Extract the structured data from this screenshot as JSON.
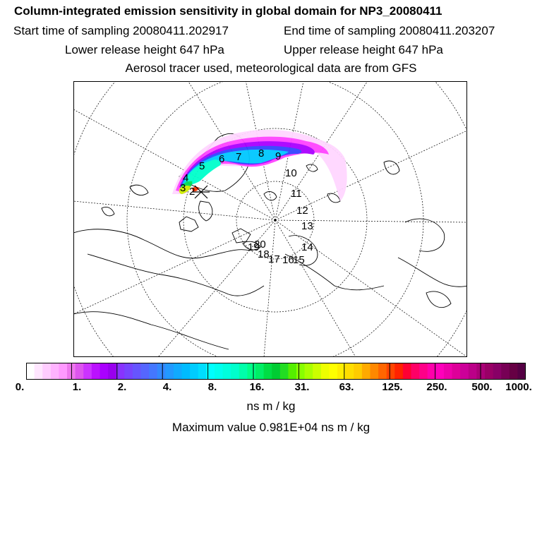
{
  "header": {
    "title": "Column-integrated emission sensitivity in global domain for NP3_20080411",
    "start_time": "Start time of sampling 20080411.202917",
    "end_time": "End time of sampling 20080411.203207",
    "lower_height": "Lower release height  647 hPa",
    "upper_height": "Upper release height  647 hPa",
    "tracer_info": "Aerosol tracer used, meteorological data are from GFS"
  },
  "map": {
    "release_marker": "release-point-cross",
    "day_labels": [
      "2",
      "3",
      "4",
      "5",
      "6",
      "7",
      "8",
      "9",
      "10",
      "11",
      "12",
      "13",
      "14",
      "15",
      "16",
      "17",
      "18",
      "19",
      "20"
    ],
    "plume_colors": [
      "#ff33ff",
      "#aa00ff",
      "#3333ff",
      "#00c8ff",
      "#00ffcc",
      "#00dd55",
      "#ccee00",
      "#ff2200"
    ]
  },
  "colorbar": {
    "tick_labels": [
      "0.",
      "1.",
      "2.",
      "4.",
      "8.",
      "16.",
      "31.",
      "63.",
      "125.",
      "250.",
      "500.",
      "1000."
    ],
    "units": "ns m / kg",
    "max_value": "Maximum value  0.981E+04 ns m / kg",
    "colors": [
      "#ffffff",
      "#ffe6ff",
      "#ffccff",
      "#ffb3ff",
      "#ff99ff",
      "#ee77ee",
      "#dd55ee",
      "#cc33ff",
      "#bb11ff",
      "#aa00ff",
      "#9900ee",
      "#8833ff",
      "#7744ff",
      "#6655ff",
      "#5566ff",
      "#4477ff",
      "#3388ff",
      "#2299ff",
      "#11aaff",
      "#00bbff",
      "#00ccff",
      "#00ddff",
      "#00ffff",
      "#00ffee",
      "#00ffdd",
      "#00ffcc",
      "#00ffaa",
      "#00ff88",
      "#00ee66",
      "#00dd44",
      "#00cc33",
      "#22dd22",
      "#55ee00",
      "#88ff00",
      "#aaff00",
      "#ccff00",
      "#eeff00",
      "#ffff00",
      "#ffee00",
      "#ffdd00",
      "#ffcc00",
      "#ffaa00",
      "#ff8800",
      "#ff6600",
      "#ff4400",
      "#ff2200",
      "#ff0033",
      "#ff0066",
      "#ff0088",
      "#ff00aa",
      "#ff00bb",
      "#ee00aa",
      "#dd0099",
      "#cc0099",
      "#bb0088",
      "#aa0077",
      "#990066",
      "#880066",
      "#770055",
      "#660044",
      "#550044"
    ]
  }
}
